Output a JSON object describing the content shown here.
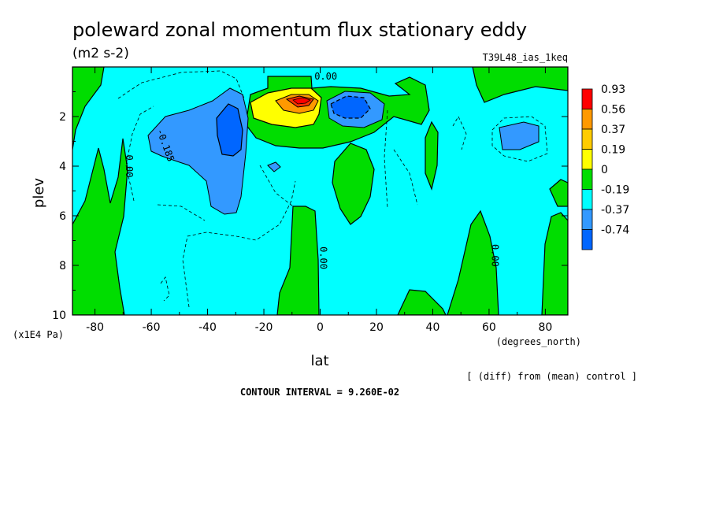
{
  "header": {
    "title": "poleward zonal momentum flux stationary eddy",
    "units": "(m2 s-2)",
    "experiment": "T39L48_ias_1keq"
  },
  "footer": {
    "diff_note": "[ (diff) from (mean) control ]",
    "contour_interval": "CONTOUR INTERVAL = 9.260E-02"
  },
  "colors": {
    "c_min": "#0066ff",
    "c_n37": "#3399ff",
    "c_n19": "#00ffff",
    "c_0": "#00dd00",
    "c_19": "#ffff00",
    "c_37": "#ff9900",
    "c_56": "#ff3300",
    "c_93": "#ff0000"
  },
  "chart_data": {
    "type": "heatmap",
    "title": "poleward zonal momentum flux stationary eddy",
    "xlabel": "lat",
    "xunits": "(degrees_north)",
    "ylabel": "plev",
    "yunits": "(x1E4 Pa)",
    "xlim": [
      -88,
      88
    ],
    "ylim": [
      0,
      10
    ],
    "y_inverted": true,
    "x_ticks": [
      -80,
      -60,
      -40,
      -20,
      0,
      20,
      40,
      60,
      80
    ],
    "y_ticks": [
      2,
      4,
      6,
      8,
      10
    ],
    "legend": {
      "placement": "right",
      "levels": [
        "0.93",
        "0.56",
        "0.37",
        "0.19",
        "0",
        "-0.19",
        "-0.37",
        "-0.74"
      ],
      "colors": [
        "#ff0000",
        "#ff9900",
        "#ffcc00",
        "#ffff00",
        "#00dd00",
        "#00ffff",
        "#3399ff",
        "#0066ff"
      ]
    },
    "contour_labels": [
      {
        "text": "0.00",
        "lat": 2,
        "plev": 0.5
      },
      {
        "text": "-0.185",
        "lat": -56,
        "plev": 3.2
      },
      {
        "text": "0.00",
        "lat": -69,
        "plev": 4.0
      },
      {
        "text": "0.00",
        "lat": 0,
        "plev": 7.7
      },
      {
        "text": "0.00",
        "lat": 61,
        "plev": 7.6
      }
    ],
    "features": [
      {
        "name": "positive maximum",
        "lat": -6,
        "plev": 1.5,
        "value": 0.93
      },
      {
        "name": "negative minimum",
        "lat": -33,
        "plev": 2.6,
        "value": -0.74
      },
      {
        "name": "negative minimum",
        "lat": 7,
        "plev": 1.6,
        "value": -0.56
      }
    ]
  }
}
